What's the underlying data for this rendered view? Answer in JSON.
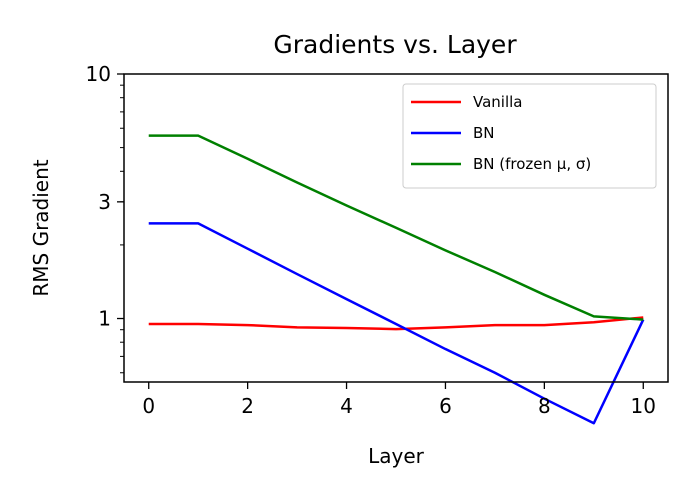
{
  "chart_data": {
    "type": "line",
    "title": "Gradients vs. Layer",
    "xlabel": "Layer",
    "ylabel": "RMS Gradient",
    "xlim": [
      -0.5,
      10.5
    ],
    "ylim": [
      0.55,
      10
    ],
    "y_scale": "log",
    "grid": false,
    "legend_position": "top-right",
    "x_ticks": [
      0,
      2,
      4,
      6,
      8,
      10
    ],
    "x_tick_labels": [
      "0",
      "2",
      "4",
      "6",
      "8",
      "10"
    ],
    "y_ticks": [
      1,
      3,
      10
    ],
    "y_tick_labels": [
      "1",
      "3",
      "10"
    ],
    "x": [
      0,
      1,
      2,
      3,
      4,
      5,
      6,
      7,
      8,
      9,
      10
    ],
    "series": [
      {
        "name": "Vanilla",
        "color": "#ff0000",
        "values": [
          0.95,
          0.95,
          0.94,
          0.92,
          0.915,
          0.905,
          0.92,
          0.94,
          0.94,
          0.965,
          1.01
        ]
      },
      {
        "name": "BN",
        "color": "#0000ff",
        "values": [
          2.45,
          2.45,
          1.93,
          1.52,
          1.2,
          0.95,
          0.75,
          0.6,
          0.47,
          0.373,
          0.99
        ]
      },
      {
        "name": "BN (frozen μ, σ)",
        "color": "#008000",
        "values": [
          5.6,
          5.6,
          4.5,
          3.6,
          2.9,
          2.35,
          1.9,
          1.55,
          1.25,
          1.02,
          0.99
        ]
      }
    ]
  }
}
